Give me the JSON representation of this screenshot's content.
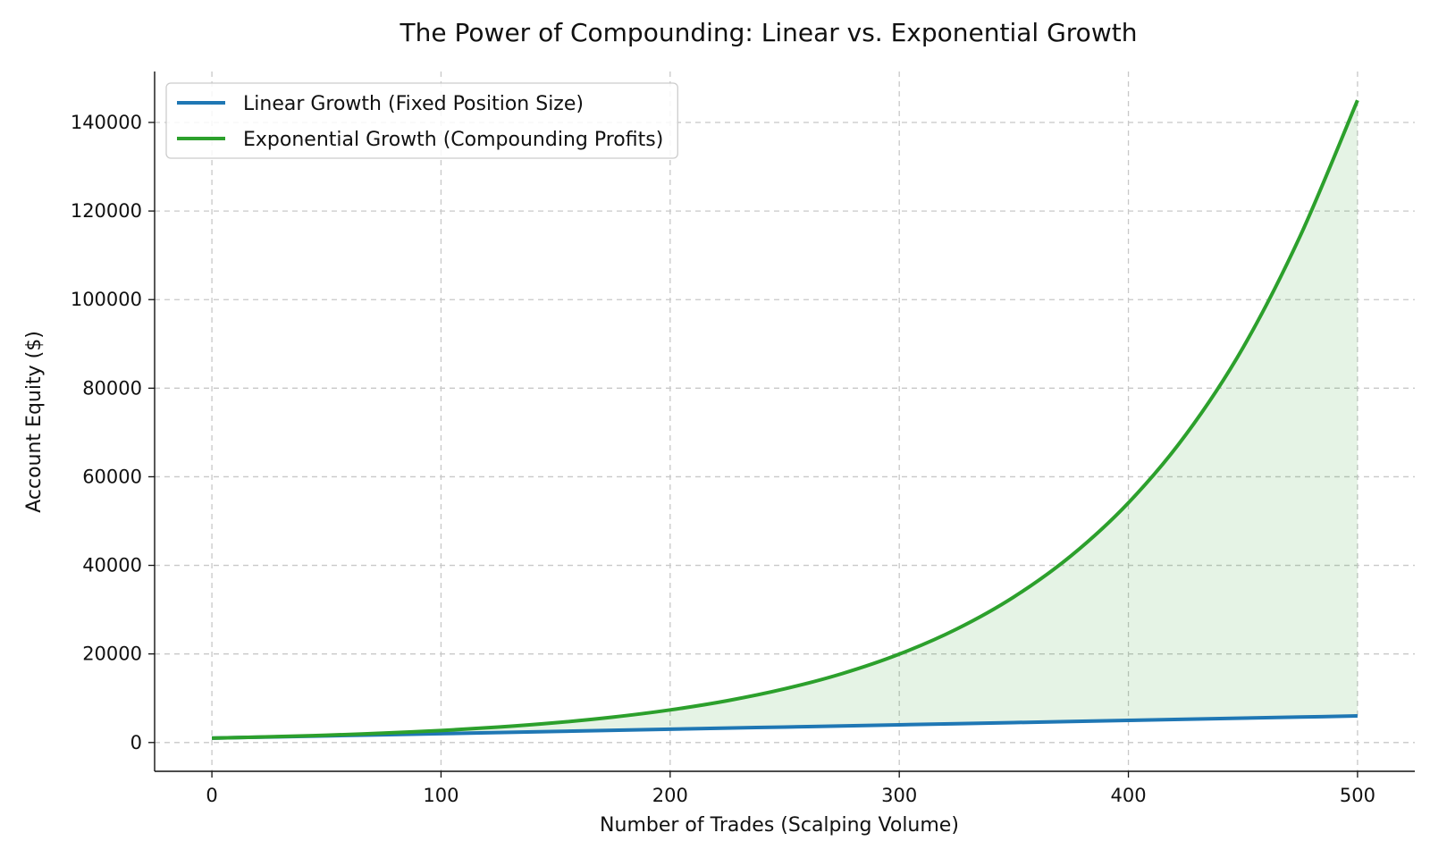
{
  "chart_data": {
    "type": "line",
    "title": "The Power of Compounding: Linear vs. Exponential Growth",
    "xlabel": "Number of Trades (Scalping Volume)",
    "ylabel": "Account Equity ($)",
    "xlim": [
      -25,
      525
    ],
    "ylim": [
      -6500,
      151500
    ],
    "xticks": [
      0,
      100,
      200,
      300,
      400,
      500
    ],
    "yticks": [
      0,
      20000,
      40000,
      60000,
      80000,
      100000,
      120000,
      140000
    ],
    "grid": true,
    "legend_position": "top-left",
    "x": [
      0,
      25,
      50,
      75,
      100,
      125,
      150,
      175,
      200,
      225,
      250,
      275,
      300,
      325,
      350,
      375,
      400,
      425,
      450,
      475,
      500
    ],
    "series": [
      {
        "name": "Linear Growth (Fixed Position Size)",
        "color": "#1f77b4",
        "values": [
          1000,
          1250,
          1500,
          1750,
          2000,
          2250,
          2500,
          2750,
          3000,
          3250,
          3500,
          3750,
          4000,
          4250,
          4500,
          4750,
          5000,
          5250,
          5500,
          5750,
          6000
        ]
      },
      {
        "name": "Exponential Growth (Compounding Profits)",
        "color": "#2ca02c",
        "values": [
          1000,
          1283,
          1647,
          2114,
          2713,
          3481,
          4468,
          5733,
          7358,
          9442,
          12117,
          15549,
          19955,
          25608,
          32863,
          42172,
          54120,
          69453,
          89129,
          114380,
          145000
        ]
      }
    ],
    "fill_between": {
      "series": [
        "Exponential Growth (Compounding Profits)",
        "Linear Growth (Fixed Position Size)"
      ],
      "color": "#2ca02c",
      "opacity": 0.12
    }
  }
}
